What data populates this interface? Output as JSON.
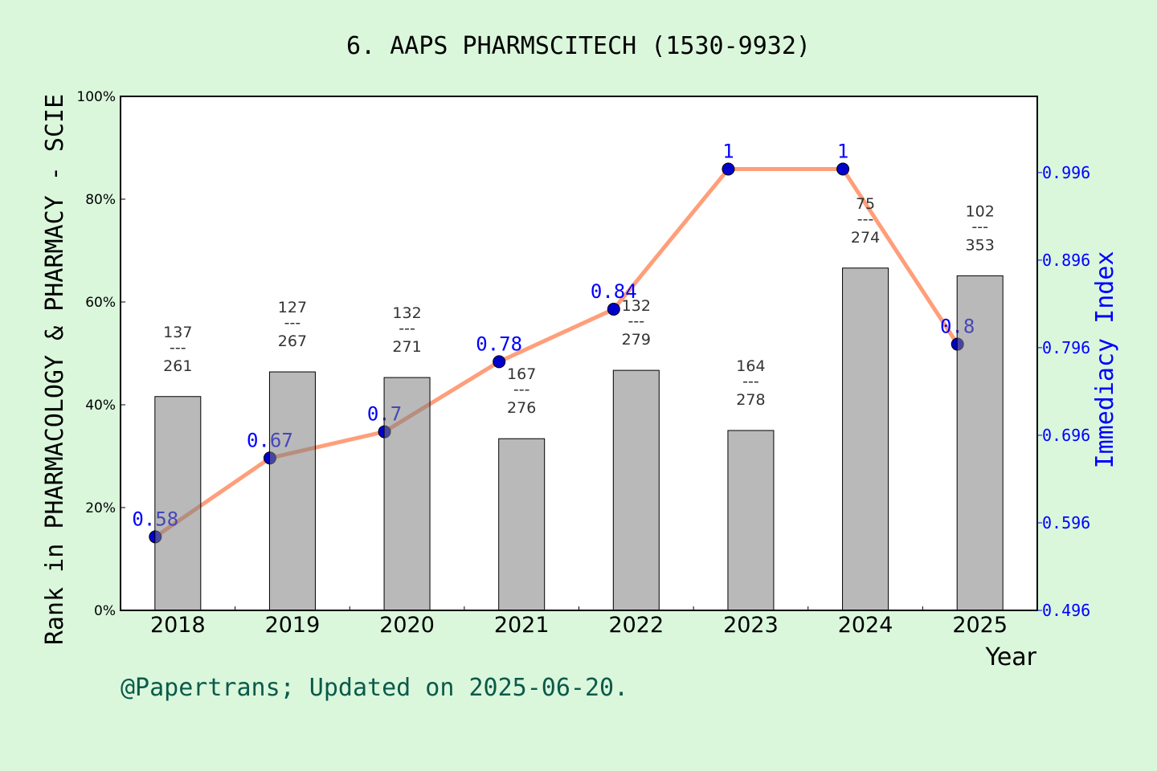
{
  "chart_data": {
    "type": "bar+line",
    "title": "6. AAPS PHARMSCITECH (1530-9932)",
    "xlabel": "Year",
    "ylabel": "Rank in PHARMACOLOGY & PHARMACY - SCIE",
    "ylabel_right": "Immediacy Index",
    "categories": [
      "2018",
      "2019",
      "2020",
      "2021",
      "2022",
      "2023",
      "2024",
      "2025"
    ],
    "bar_values_percent": [
      41.6,
      46.4,
      45.3,
      33.4,
      46.7,
      35.0,
      66.6,
      65.1
    ],
    "rank_labels": [
      {
        "rank": "137",
        "total": "261"
      },
      {
        "rank": "127",
        "total": "267"
      },
      {
        "rank": "132",
        "total": "271"
      },
      {
        "rank": "167",
        "total": "276"
      },
      {
        "rank": "132",
        "total": "279"
      },
      {
        "rank": "164",
        "total": "278"
      },
      {
        "rank": "75",
        "total": "274"
      },
      {
        "rank": "102",
        "total": "353"
      }
    ],
    "line_values": [
      0.58,
      0.67,
      0.7,
      0.78,
      0.84,
      1,
      1,
      0.8
    ],
    "line_labels": [
      "0.58",
      "0.67",
      "0.7",
      "0.78",
      "0.84",
      "1",
      "1",
      "0.8"
    ],
    "ylim": [
      0,
      100
    ],
    "yticks": [
      "0%",
      "20%",
      "40%",
      "60%",
      "80%",
      "100%"
    ],
    "ylim_right": [
      0.496,
      1.083
    ],
    "yticks_right": [
      "0.496",
      "0.596",
      "0.696",
      "0.796",
      "0.896",
      "0.996"
    ],
    "grid": false,
    "colors": {
      "bar": "#b9b9b9",
      "line": "#ff9e7a",
      "marker": "#0000cc",
      "right_axis": "#0000ff",
      "background": "#daf7dc",
      "footer": "#0b5a4a"
    }
  },
  "footer": "@Papertrans; Updated on 2025-06-20."
}
